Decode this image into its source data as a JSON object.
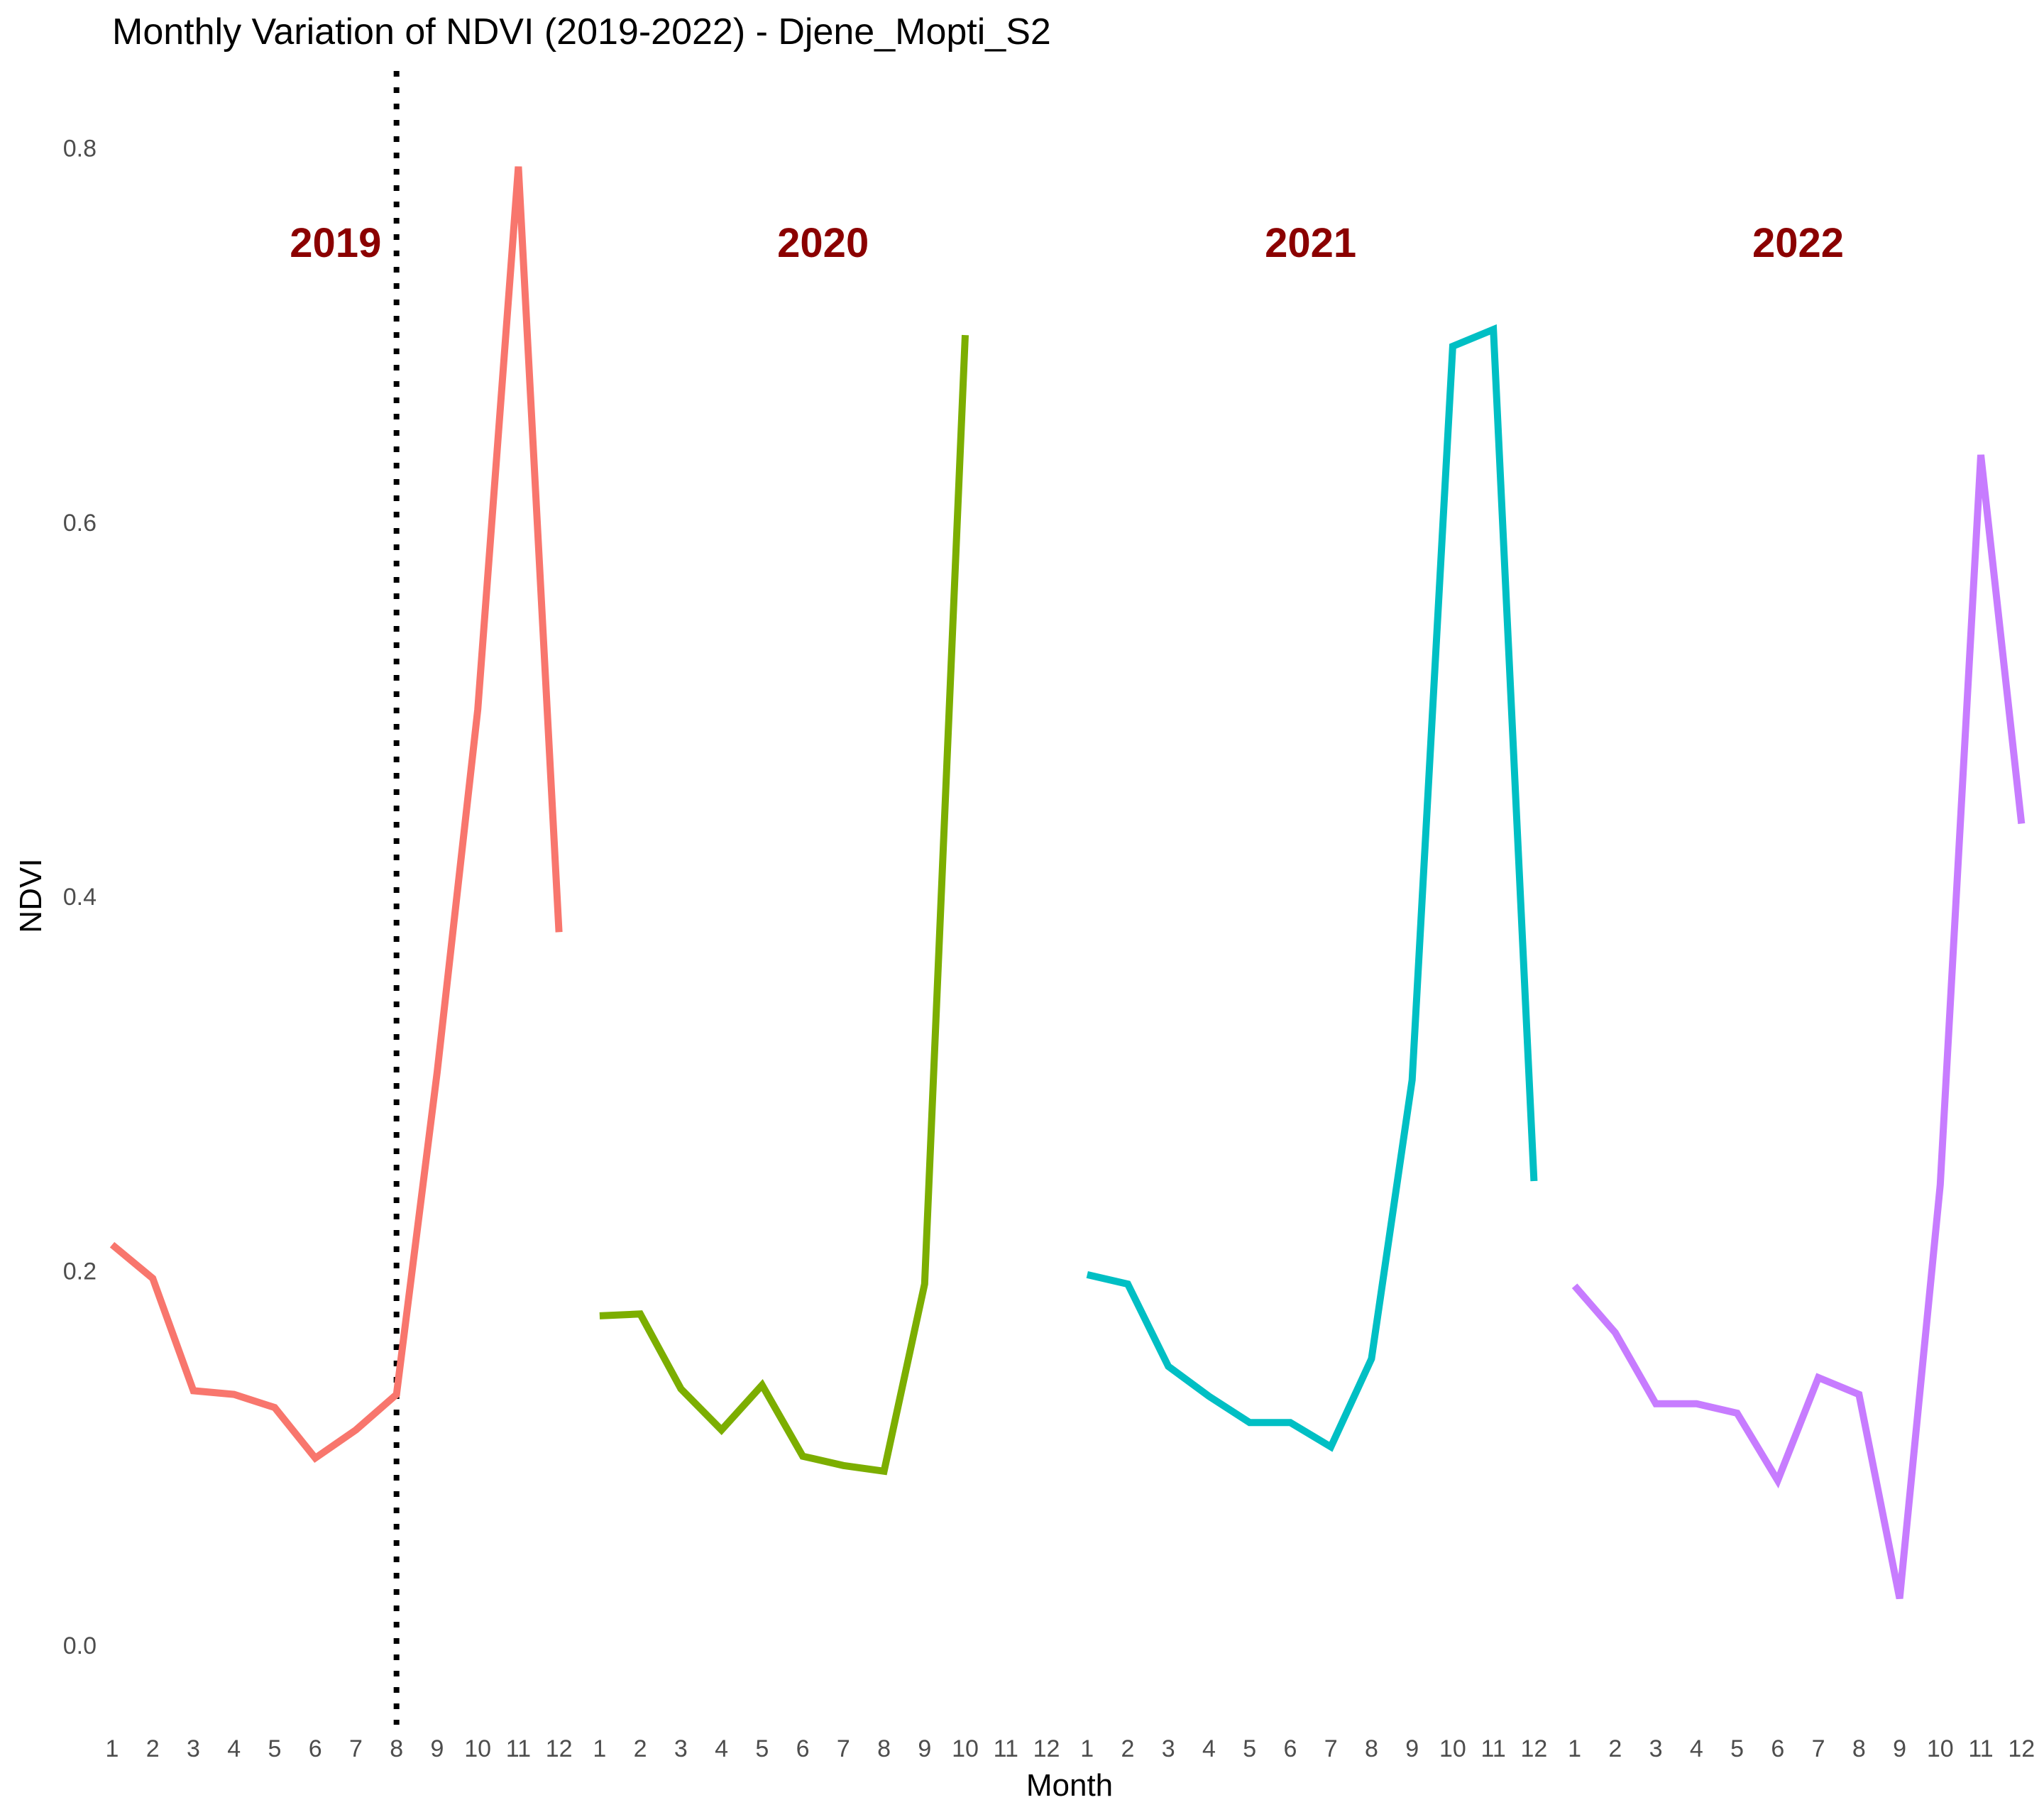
{
  "chart_data": {
    "type": "line",
    "title": "Monthly Variation of NDVI (2019-2022) - Djene_Mopti_S2",
    "xlabel": "Month",
    "ylabel": "NDVI",
    "ylim": [
      -0.05,
      0.83
    ],
    "yticks": [
      "0.0",
      "0.2",
      "0.4",
      "0.6",
      "0.8"
    ],
    "ytick_values": [
      0.0,
      0.2,
      0.4,
      0.6,
      0.8
    ],
    "xtick_labels": [
      "1",
      "2",
      "3",
      "4",
      "5",
      "6",
      "7",
      "8",
      "9",
      "10",
      "11",
      "12",
      "1",
      "2",
      "3",
      "4",
      "5",
      "6",
      "7",
      "8",
      "9",
      "10",
      "11",
      "12",
      "1",
      "2",
      "3",
      "4",
      "5",
      "6",
      "7",
      "8",
      "9",
      "10",
      "11",
      "12",
      "1",
      "2",
      "3",
      "4",
      "5",
      "6",
      "7",
      "8",
      "9",
      "10",
      "11",
      "12"
    ],
    "grid": false,
    "legend": "none",
    "series": [
      {
        "year_label": "2019",
        "color": "#F8766D",
        "months": [
          1,
          2,
          3,
          4,
          5,
          6,
          7,
          8,
          9,
          10,
          11,
          12
        ],
        "values": [
          0.214,
          0.196,
          0.136,
          0.134,
          0.127,
          0.1,
          0.115,
          0.134,
          0.306,
          0.5,
          0.79,
          0.381
        ]
      },
      {
        "year_label": "2020",
        "color": "#7CAE00",
        "months": [
          1,
          2,
          3,
          4,
          5,
          6,
          7,
          8,
          9,
          10
        ],
        "values": [
          0.176,
          0.177,
          0.137,
          0.115,
          0.139,
          0.101,
          0.096,
          0.093,
          0.193,
          0.7
        ]
      },
      {
        "year_label": "2021",
        "color": "#00BFC4",
        "months": [
          1,
          2,
          3,
          4,
          5,
          6,
          7,
          8,
          9,
          10,
          11,
          12
        ],
        "values": [
          0.198,
          0.193,
          0.149,
          0.133,
          0.119,
          0.119,
          0.106,
          0.153,
          0.302,
          0.694,
          0.703,
          0.248
        ]
      },
      {
        "year_label": "2022",
        "color": "#C77CFF",
        "months": [
          1,
          2,
          3,
          4,
          5,
          6,
          7,
          8,
          9,
          10,
          11,
          12
        ],
        "values": [
          0.192,
          0.167,
          0.129,
          0.129,
          0.124,
          0.088,
          0.143,
          0.134,
          0.025,
          0.246,
          0.636,
          0.439
        ]
      }
    ],
    "vline": {
      "month_index": 8,
      "style": "dotted",
      "color": "#000000"
    }
  }
}
